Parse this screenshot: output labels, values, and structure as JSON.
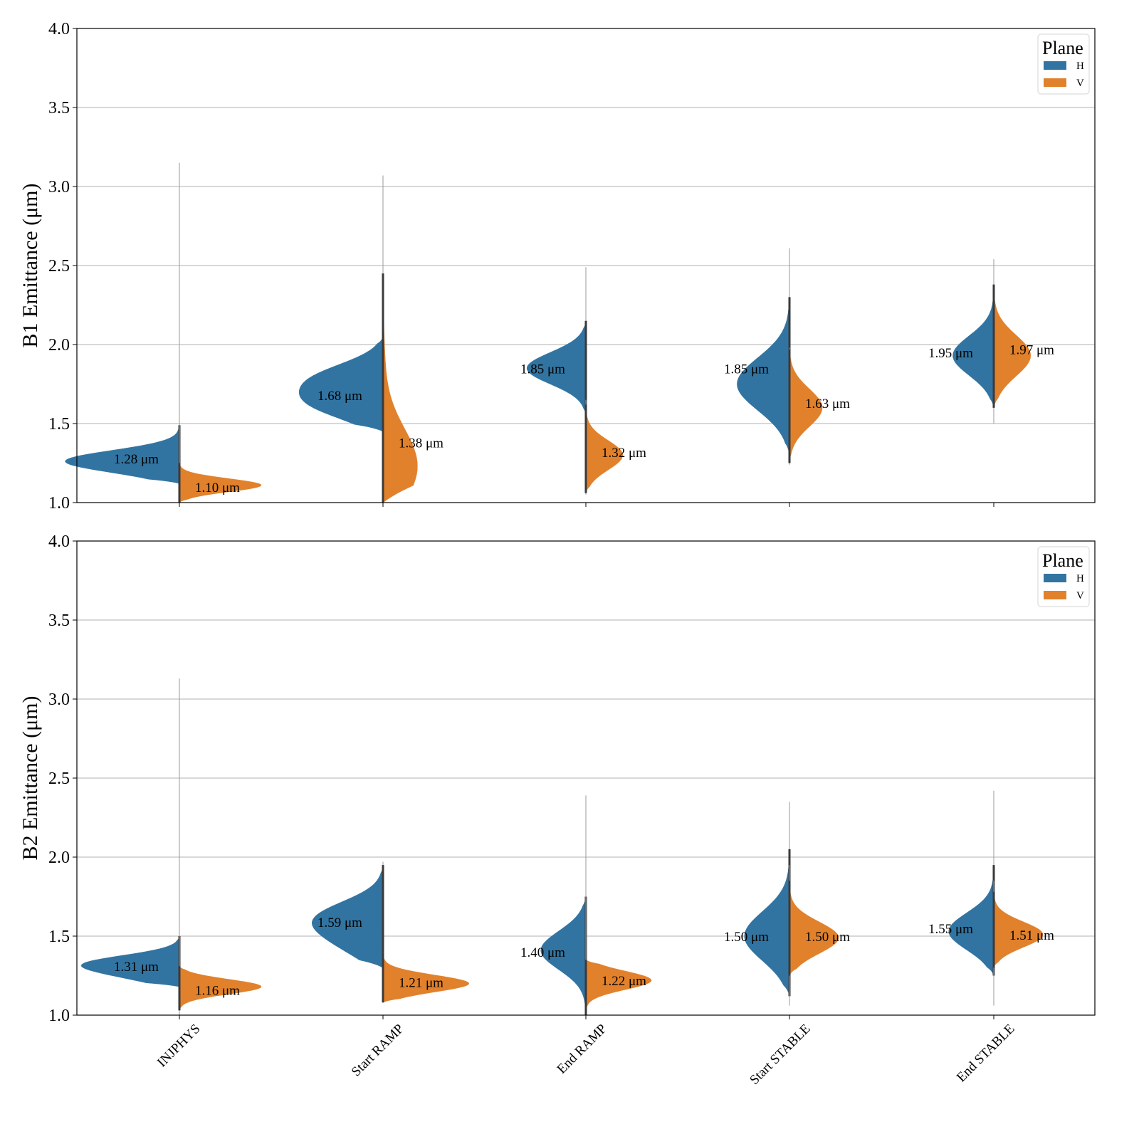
{
  "chart_data": [
    {
      "type": "violin",
      "subtype": "split",
      "ylabel": "B1 Emittance (μm)",
      "ylim": [
        1.0,
        4.0
      ],
      "yticks": [
        "1.0",
        "1.5",
        "2.0",
        "2.5",
        "3.0",
        "3.5",
        "4.0"
      ],
      "grid": "y",
      "categories": [
        "INJPHYS",
        "Start RAMP",
        "End RAMP",
        "Start STABLE",
        "End STABLE"
      ],
      "legend": {
        "title": "Plane",
        "position": "top-right",
        "entries": [
          {
            "name": "H",
            "color": "#3274a1"
          },
          {
            "name": "V",
            "color": "#e1812c"
          }
        ]
      },
      "series": [
        {
          "name": "H",
          "color": "#3274a1",
          "medians": [
            1.28,
            1.68,
            1.85,
            1.85,
            1.95
          ],
          "labels": [
            "1.28 μm",
            "1.68 μm",
            "1.85 μm",
            "1.85 μm",
            "1.95 μm"
          ],
          "ranges": [
            [
              1.0,
              3.15
            ],
            [
              1.0,
              3.07
            ],
            [
              1.07,
              2.49
            ],
            [
              1.28,
              2.61
            ],
            [
              1.5,
              2.54
            ]
          ],
          "body": [
            {
              "lo": 1.12,
              "hi": 1.49,
              "peaks": [
                [
                  1.28,
                  1.0
                ],
                [
                  1.22,
                  0.55
                ]
              ]
            },
            {
              "lo": 1.45,
              "hi": 2.05,
              "peaks": [
                [
                  1.62,
                  0.75
                ],
                [
                  1.79,
                  0.72
                ]
              ]
            },
            {
              "lo": 1.55,
              "hi": 2.15,
              "peaks": [
                [
                  1.85,
                  0.72
                ]
              ]
            },
            {
              "lo": 1.3,
              "hi": 2.3,
              "peaks": [
                [
                  1.75,
                  0.64
                ]
              ]
            },
            {
              "lo": 1.6,
              "hi": 2.35,
              "peaks": [
                [
                  1.93,
                  0.5
                ]
              ]
            }
          ]
        },
        {
          "name": "V",
          "color": "#e1812c",
          "medians": [
            1.1,
            1.38,
            1.32,
            1.63,
            1.97
          ],
          "labels": [
            "1.10 μm",
            "1.38 μm",
            "1.32 μm",
            "1.63 μm",
            "1.97 μm"
          ],
          "ranges": [
            [
              1.0,
              2.38
            ],
            [
              1.0,
              2.5
            ],
            [
              1.05,
              1.65
            ],
            [
              1.24,
              1.98
            ],
            [
              1.58,
              2.42
            ]
          ],
          "body": [
            {
              "lo": 1.0,
              "hi": 1.25,
              "peaks": [
                [
                  1.11,
                  1.0
                ]
              ]
            },
            {
              "lo": 1.0,
              "hi": 2.45,
              "peaks": [
                [
                  1.23,
                  0.42
                ],
                [
                  1.85,
                  0.02
                ]
              ]
            },
            {
              "lo": 1.06,
              "hi": 1.62,
              "peaks": [
                [
                  1.3,
                  0.45
                ]
              ]
            },
            {
              "lo": 1.25,
              "hi": 1.97,
              "peaks": [
                [
                  1.6,
                  0.4
                ]
              ]
            },
            {
              "lo": 1.6,
              "hi": 2.38,
              "peaks": [
                [
                  1.93,
                  0.45
                ]
              ]
            }
          ]
        }
      ]
    },
    {
      "type": "violin",
      "subtype": "split",
      "ylabel": "B2 Emittance (μm)",
      "ylim": [
        1.0,
        4.0
      ],
      "yticks": [
        "1.0",
        "1.5",
        "2.0",
        "2.5",
        "3.0",
        "3.5",
        "4.0"
      ],
      "grid": "y",
      "categories": [
        "INJPHYS",
        "Start RAMP",
        "End RAMP",
        "Start STABLE",
        "End STABLE"
      ],
      "xlabel_rotation_deg": 45,
      "legend": {
        "title": "Plane",
        "position": "top-right",
        "entries": [
          {
            "name": "H",
            "color": "#3274a1"
          },
          {
            "name": "V",
            "color": "#e1812c"
          }
        ]
      },
      "series": [
        {
          "name": "H",
          "color": "#3274a1",
          "medians": [
            1.31,
            1.59,
            1.4,
            1.5,
            1.55
          ],
          "labels": [
            "1.31 μm",
            "1.59 μm",
            "1.40 μm",
            "1.50 μm",
            "1.55 μm"
          ],
          "ranges": [
            [
              1.0,
              3.13
            ],
            [
              1.08,
              1.97
            ],
            [
              1.0,
              2.39
            ],
            [
              1.06,
              2.35
            ],
            [
              1.06,
              2.42
            ]
          ],
          "body": [
            {
              "lo": 1.18,
              "hi": 1.5,
              "peaks": [
                [
                  1.33,
                  1.0
                ],
                [
                  1.25,
                  0.5
                ]
              ]
            },
            {
              "lo": 1.3,
              "hi": 1.95,
              "peaks": [
                [
                  1.62,
                  0.72
                ],
                [
                  1.45,
                  0.4
                ]
              ]
            },
            {
              "lo": 1.02,
              "hi": 1.75,
              "peaks": [
                [
                  1.41,
                  0.55
                ]
              ]
            },
            {
              "lo": 1.12,
              "hi": 2.05,
              "peaks": [
                [
                  1.5,
                  0.55
                ]
              ]
            },
            {
              "lo": 1.25,
              "hi": 1.95,
              "peaks": [
                [
                  1.53,
                  0.55
                ]
              ]
            }
          ]
        },
        {
          "name": "V",
          "color": "#e1812c",
          "medians": [
            1.16,
            1.21,
            1.22,
            1.5,
            1.51
          ],
          "labels": [
            "1.16 μm",
            "1.21 μm",
            "1.22 μm",
            "1.50 μm",
            "1.51 μm"
          ],
          "ranges": [
            [
              1.0,
              2.4
            ],
            [
              1.08,
              1.4
            ],
            [
              1.0,
              2.38
            ],
            [
              1.1,
              1.95
            ],
            [
              1.1,
              1.85
            ]
          ],
          "body": [
            {
              "lo": 1.03,
              "hi": 1.31,
              "peaks": [
                [
                  1.18,
                  1.0
                ]
              ]
            },
            {
              "lo": 1.08,
              "hi": 1.4,
              "peaks": [
                [
                  1.2,
                  1.05
                ]
              ]
            },
            {
              "lo": 1.0,
              "hi": 1.35,
              "peaks": [
                [
                  1.22,
                  0.8
                ]
              ]
            },
            {
              "lo": 1.25,
              "hi": 1.85,
              "peaks": [
                [
                  1.49,
                  0.6
                ]
              ]
            },
            {
              "lo": 1.3,
              "hi": 1.78,
              "peaks": [
                [
                  1.51,
                  0.6
                ]
              ]
            }
          ]
        }
      ]
    }
  ]
}
